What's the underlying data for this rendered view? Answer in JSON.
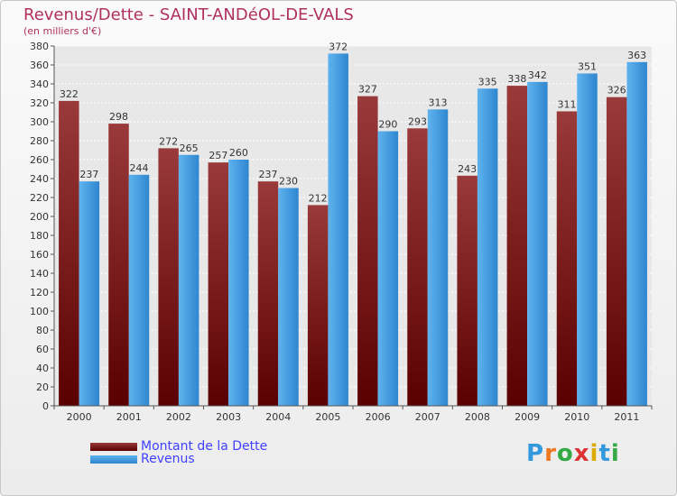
{
  "title": "Revenus/Dette - SAINT-ANDéOL-DE-VALS",
  "subtitle": "(en milliers d'€)",
  "colors": {
    "dette": "#7a1a1a",
    "revenus": "#4a9fe0",
    "title": "#b03060",
    "legend_text": "#4040ff"
  },
  "legend": [
    {
      "label": "Montant de la Dette",
      "color_key": "dette"
    },
    {
      "label": "Revenus",
      "color_key": "revenus"
    }
  ],
  "logo": {
    "letters": [
      "P",
      "r",
      "o",
      "x",
      "i",
      "t",
      "i"
    ],
    "colors": [
      "#3399dd",
      "#ee7722",
      "#33aa44",
      "#dd3333",
      "#ddaa00",
      "#3399dd",
      "#33aa44"
    ]
  },
  "chart_data": {
    "type": "bar",
    "categories": [
      "2000",
      "2001",
      "2002",
      "2003",
      "2004",
      "2005",
      "2006",
      "2007",
      "2008",
      "2009",
      "2010",
      "2011"
    ],
    "series": [
      {
        "name": "Montant de la Dette",
        "values": [
          322,
          298,
          272,
          257,
          237,
          212,
          327,
          293,
          243,
          338,
          311,
          326
        ]
      },
      {
        "name": "Revenus",
        "values": [
          237,
          244,
          265,
          260,
          230,
          372,
          290,
          313,
          335,
          342,
          351,
          363
        ]
      }
    ],
    "ylim": [
      0,
      380
    ],
    "yticks": [
      0,
      20,
      40,
      60,
      80,
      100,
      120,
      140,
      160,
      180,
      200,
      220,
      240,
      260,
      280,
      300,
      320,
      340,
      360,
      380
    ],
    "grid": true,
    "legend_position": "bottom-left"
  }
}
